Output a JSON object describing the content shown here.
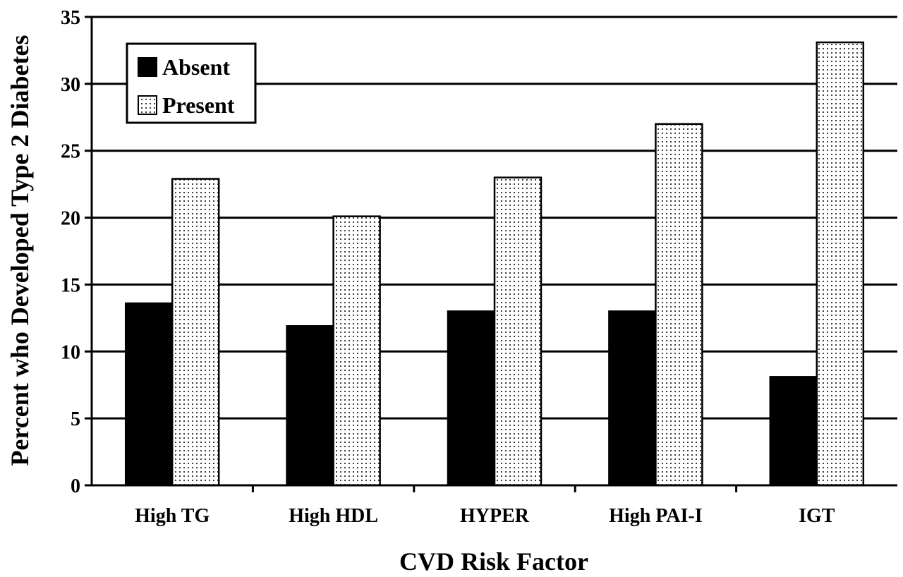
{
  "chart_data": {
    "type": "bar",
    "title": "",
    "xlabel": "CVD Risk Factor",
    "ylabel": "Percent who Developed Type 2 Diabetes",
    "categories": [
      "High TG",
      "High HDL",
      "HYPER",
      "High PAI-I",
      "IGT"
    ],
    "series": [
      {
        "name": "Absent",
        "color": "#000000",
        "pattern": "solid",
        "values": [
          13.6,
          11.9,
          13.0,
          13.0,
          8.1
        ]
      },
      {
        "name": "Present",
        "color": "#ffffff",
        "pattern": "dotted",
        "values": [
          22.9,
          20.1,
          23.0,
          27.0,
          33.1
        ]
      }
    ],
    "ylim": [
      0,
      35
    ],
    "yticks": [
      0,
      5,
      10,
      15,
      20,
      25,
      30,
      35
    ],
    "grid": true,
    "legend_position": "top-left"
  }
}
